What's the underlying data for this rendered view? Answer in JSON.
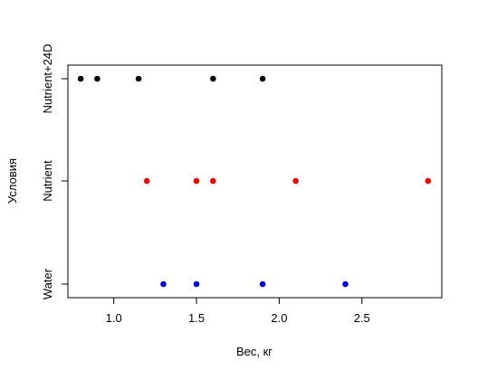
{
  "chart_data": {
    "type": "scatter",
    "title": "",
    "xlabel": "Вес, кг",
    "ylabel": "Условия",
    "xlim": [
      0.75,
      2.95
    ],
    "xticks": [
      1.0,
      1.5,
      2.0,
      2.5
    ],
    "xtick_labels": [
      "1.0",
      "1.5",
      "2.0",
      "2.5"
    ],
    "categories": [
      "Water",
      "Nutrient",
      "Nutrient+24D"
    ],
    "grid": false,
    "legend": "none",
    "series": [
      {
        "category": "Water",
        "color": "#0000ff",
        "x": [
          1.3,
          1.5,
          1.9,
          2.4
        ]
      },
      {
        "category": "Nutrient",
        "color": "#ff0000",
        "x": [
          1.2,
          1.5,
          1.6,
          2.1,
          2.9
        ]
      },
      {
        "category": "Nutrient+24D",
        "color": "#000000",
        "x": [
          0.8,
          0.9,
          1.15,
          1.6,
          1.9
        ]
      }
    ]
  }
}
